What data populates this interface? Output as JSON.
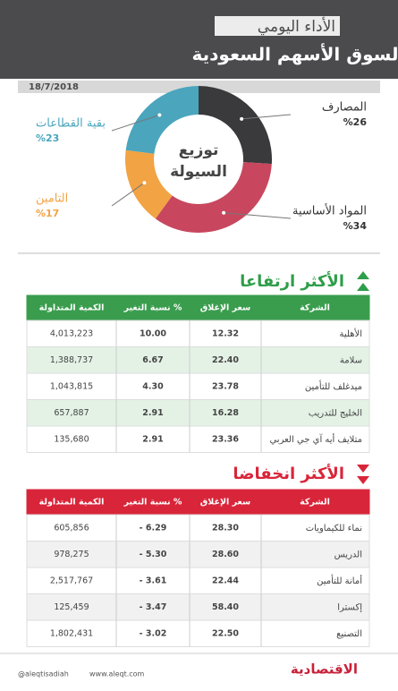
{
  "header": {
    "subtitle": "الأداء اليومي",
    "title": "لسوق الأسهم السعودية",
    "date": "18/7/2018"
  },
  "chart_data": {
    "type": "pie",
    "title": [
      "توزيع",
      "السيولة"
    ],
    "categories": [
      "المصارف",
      "المواد الأساسية",
      "التامين",
      "بقية القطاعات"
    ],
    "values": [
      26,
      34,
      17,
      23
    ],
    "value_labels": [
      "%26",
      "%34",
      "%17",
      "%23"
    ],
    "colors": [
      "#3a3a3c",
      "#c8475e",
      "#f2a344",
      "#4aa5bd"
    ]
  },
  "gainers": {
    "title": "الأكثر ارتفاعا",
    "columns": [
      "الشركة",
      "سعر الإغلاق",
      "نسبة التغير %",
      "الكمية المتداولة"
    ],
    "rows": [
      [
        "الأهلية",
        "12.32",
        "10.00",
        "4,013,223"
      ],
      [
        "سلامة",
        "22.40",
        "6.67",
        "1,388,737"
      ],
      [
        "ميدغلف للتأمين",
        "23.78",
        "4.30",
        "1,043,815"
      ],
      [
        "الخليج للتدريب",
        "16.28",
        "2.91",
        "657,887"
      ],
      [
        "متلايف أيه آي جي العربي",
        "23.36",
        "2.91",
        "135,680"
      ]
    ]
  },
  "losers": {
    "title": "الأكثر انخفاضا",
    "columns": [
      "الشركة",
      "سعر الإغلاق",
      "نسبة التغير %",
      "الكمية المتداولة"
    ],
    "rows": [
      [
        "نماء للكيماويات",
        "28.30",
        "- 6.29",
        "605,856"
      ],
      [
        "الدريس",
        "28.60",
        "- 5.30",
        "978,275"
      ],
      [
        "أمانة للتأمين",
        "22.44",
        "- 3.61",
        "2,517,767"
      ],
      [
        "إكسترا",
        "58.40",
        "- 3.47",
        "125,459"
      ],
      [
        "التصنيع",
        "22.50",
        "- 3.02",
        "1,802,431"
      ]
    ]
  },
  "footer": {
    "twitter": "@aleqtisadiah",
    "web": "www.aleqt.com",
    "brand": "الاقتصادية"
  }
}
